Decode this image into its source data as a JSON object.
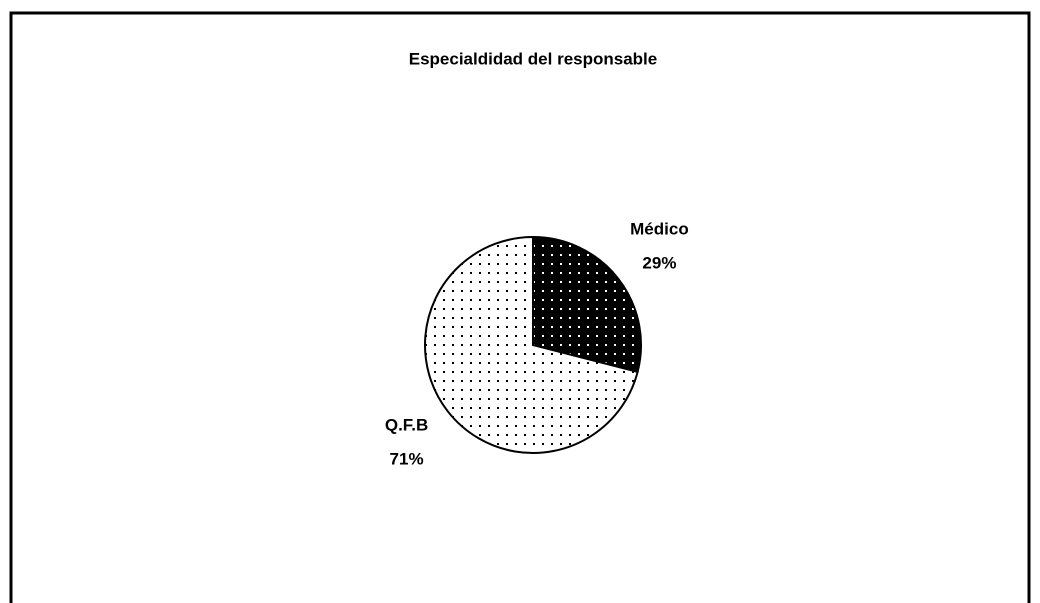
{
  "chart_data": {
    "type": "pie",
    "title": "Especialdidad del responsable",
    "categories": [
      "Médico",
      "Q.F.B"
    ],
    "values": [
      29,
      71
    ],
    "value_labels": [
      "29%",
      "71%"
    ],
    "colors": [
      "#000000",
      "#ffffff"
    ]
  }
}
